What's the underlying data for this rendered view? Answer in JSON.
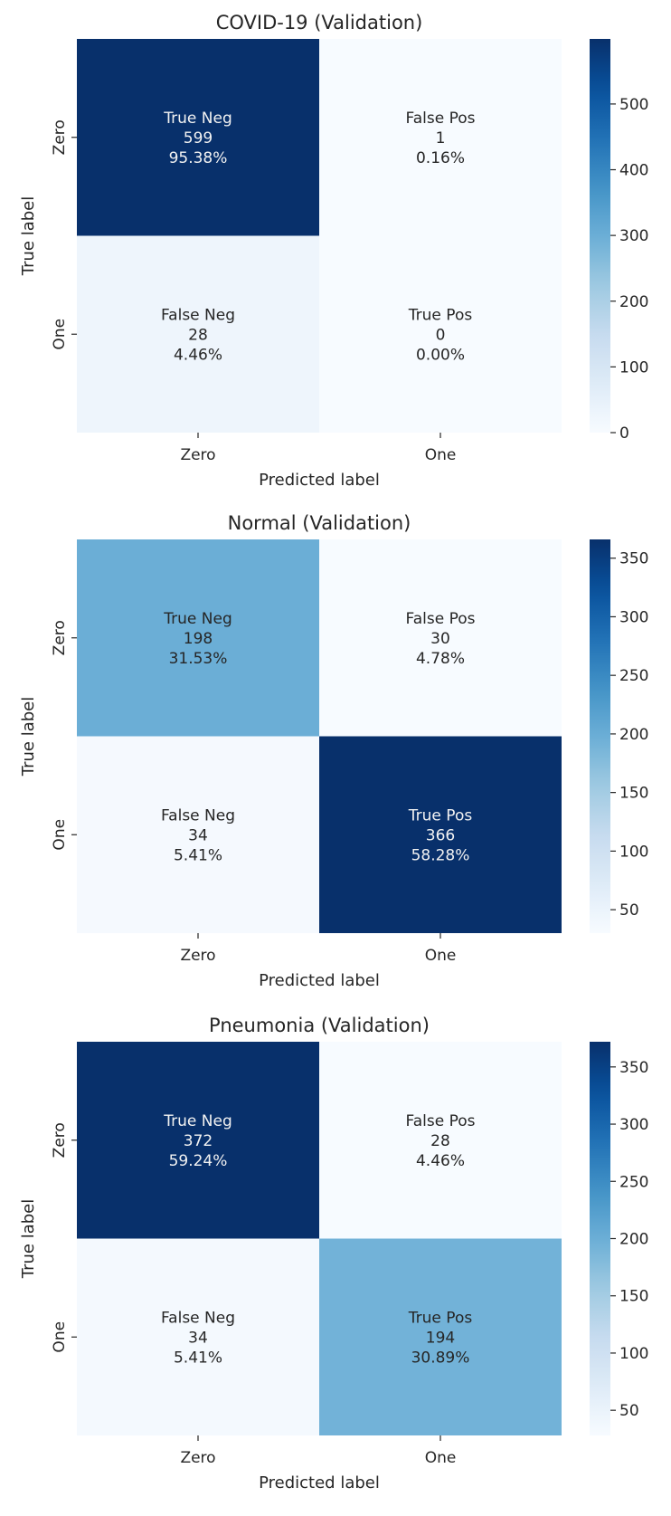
{
  "chart_data": [
    {
      "type": "heatmap",
      "title": "COVID-19 (Validation)",
      "xlabel": "Predicted label",
      "ylabel": "True label",
      "x_categories": [
        "Zero",
        "One"
      ],
      "y_categories": [
        "Zero",
        "One"
      ],
      "cells": [
        [
          {
            "name": "True Neg",
            "count": "599",
            "percent": "95.38%",
            "value": 599
          },
          {
            "name": "False Pos",
            "count": "1",
            "percent": "0.16%",
            "value": 1
          }
        ],
        [
          {
            "name": "False Neg",
            "count": "28",
            "percent": "4.46%",
            "value": 28
          },
          {
            "name": "True Pos",
            "count": "0",
            "percent": "0.00%",
            "value": 0
          }
        ]
      ],
      "colorbar": {
        "min": 0,
        "max": 599,
        "ticks": [
          0,
          100,
          200,
          300,
          400,
          500
        ]
      },
      "colormap": "Blues"
    },
    {
      "type": "heatmap",
      "title": "Normal (Validation)",
      "xlabel": "Predicted label",
      "ylabel": "True label",
      "x_categories": [
        "Zero",
        "One"
      ],
      "y_categories": [
        "Zero",
        "One"
      ],
      "cells": [
        [
          {
            "name": "True Neg",
            "count": "198",
            "percent": "31.53%",
            "value": 198
          },
          {
            "name": "False Pos",
            "count": "30",
            "percent": "4.78%",
            "value": 30
          }
        ],
        [
          {
            "name": "False Neg",
            "count": "34",
            "percent": "5.41%",
            "value": 34
          },
          {
            "name": "True Pos",
            "count": "366",
            "percent": "58.28%",
            "value": 366
          }
        ]
      ],
      "colorbar": {
        "min": 30,
        "max": 366,
        "ticks": [
          50,
          100,
          150,
          200,
          250,
          300,
          350
        ]
      },
      "colormap": "Blues"
    },
    {
      "type": "heatmap",
      "title": "Pneumonia (Validation)",
      "xlabel": "Predicted label",
      "ylabel": "True label",
      "x_categories": [
        "Zero",
        "One"
      ],
      "y_categories": [
        "Zero",
        "One"
      ],
      "cells": [
        [
          {
            "name": "True Neg",
            "count": "372",
            "percent": "59.24%",
            "value": 372
          },
          {
            "name": "False Pos",
            "count": "28",
            "percent": "4.46%",
            "value": 28
          }
        ],
        [
          {
            "name": "False Neg",
            "count": "34",
            "percent": "5.41%",
            "value": 34
          },
          {
            "name": "True Pos",
            "count": "194",
            "percent": "30.89%",
            "value": 194
          }
        ]
      ],
      "colorbar": {
        "min": 28,
        "max": 372,
        "ticks": [
          50,
          100,
          150,
          200,
          250,
          300,
          350
        ]
      },
      "colormap": "Blues"
    }
  ]
}
